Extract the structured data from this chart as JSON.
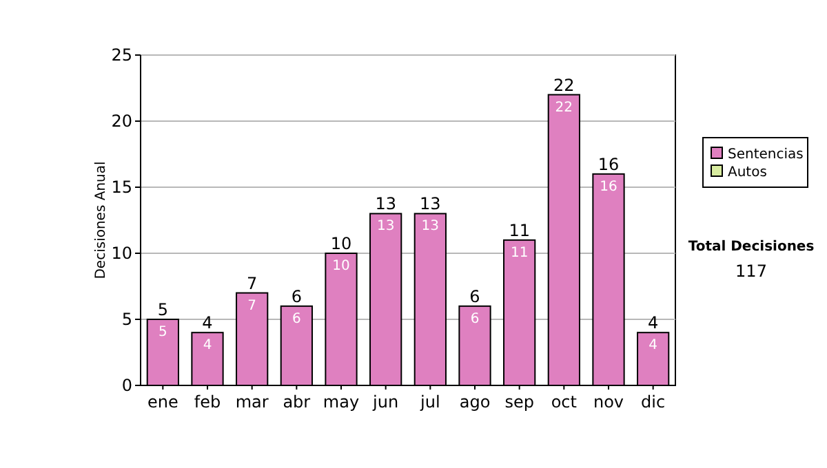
{
  "chart_data": {
    "type": "bar",
    "ylabel": "Decisiones Anual",
    "categories": [
      "ene",
      "feb",
      "mar",
      "abr",
      "may",
      "jun",
      "jul",
      "ago",
      "sep",
      "oct",
      "nov",
      "dic"
    ],
    "series": [
      {
        "name": "Sentencias",
        "color": "#df80c0",
        "values": [
          5,
          4,
          7,
          6,
          10,
          13,
          13,
          6,
          11,
          22,
          16,
          4
        ],
        "value_labels": [
          "5",
          "4",
          "7",
          "6",
          "10",
          "13",
          "13",
          "6",
          "11",
          "22",
          "16",
          "4"
        ]
      },
      {
        "name": "Autos",
        "color": "#d8eca0",
        "values": [
          0,
          0,
          0,
          0,
          0,
          0,
          0,
          0,
          0,
          0,
          0,
          0
        ]
      }
    ],
    "stacked": true,
    "ylim": [
      0,
      25
    ],
    "yticks": [
      0,
      5,
      10,
      15,
      20,
      25
    ],
    "grid": "y",
    "legend": "right",
    "totals": [
      "5",
      "4",
      "7",
      "6",
      "10",
      "13",
      "13",
      "6",
      "11",
      "22",
      "16",
      "4"
    ],
    "annotations": [
      "Total Decisiones",
      "117"
    ]
  }
}
